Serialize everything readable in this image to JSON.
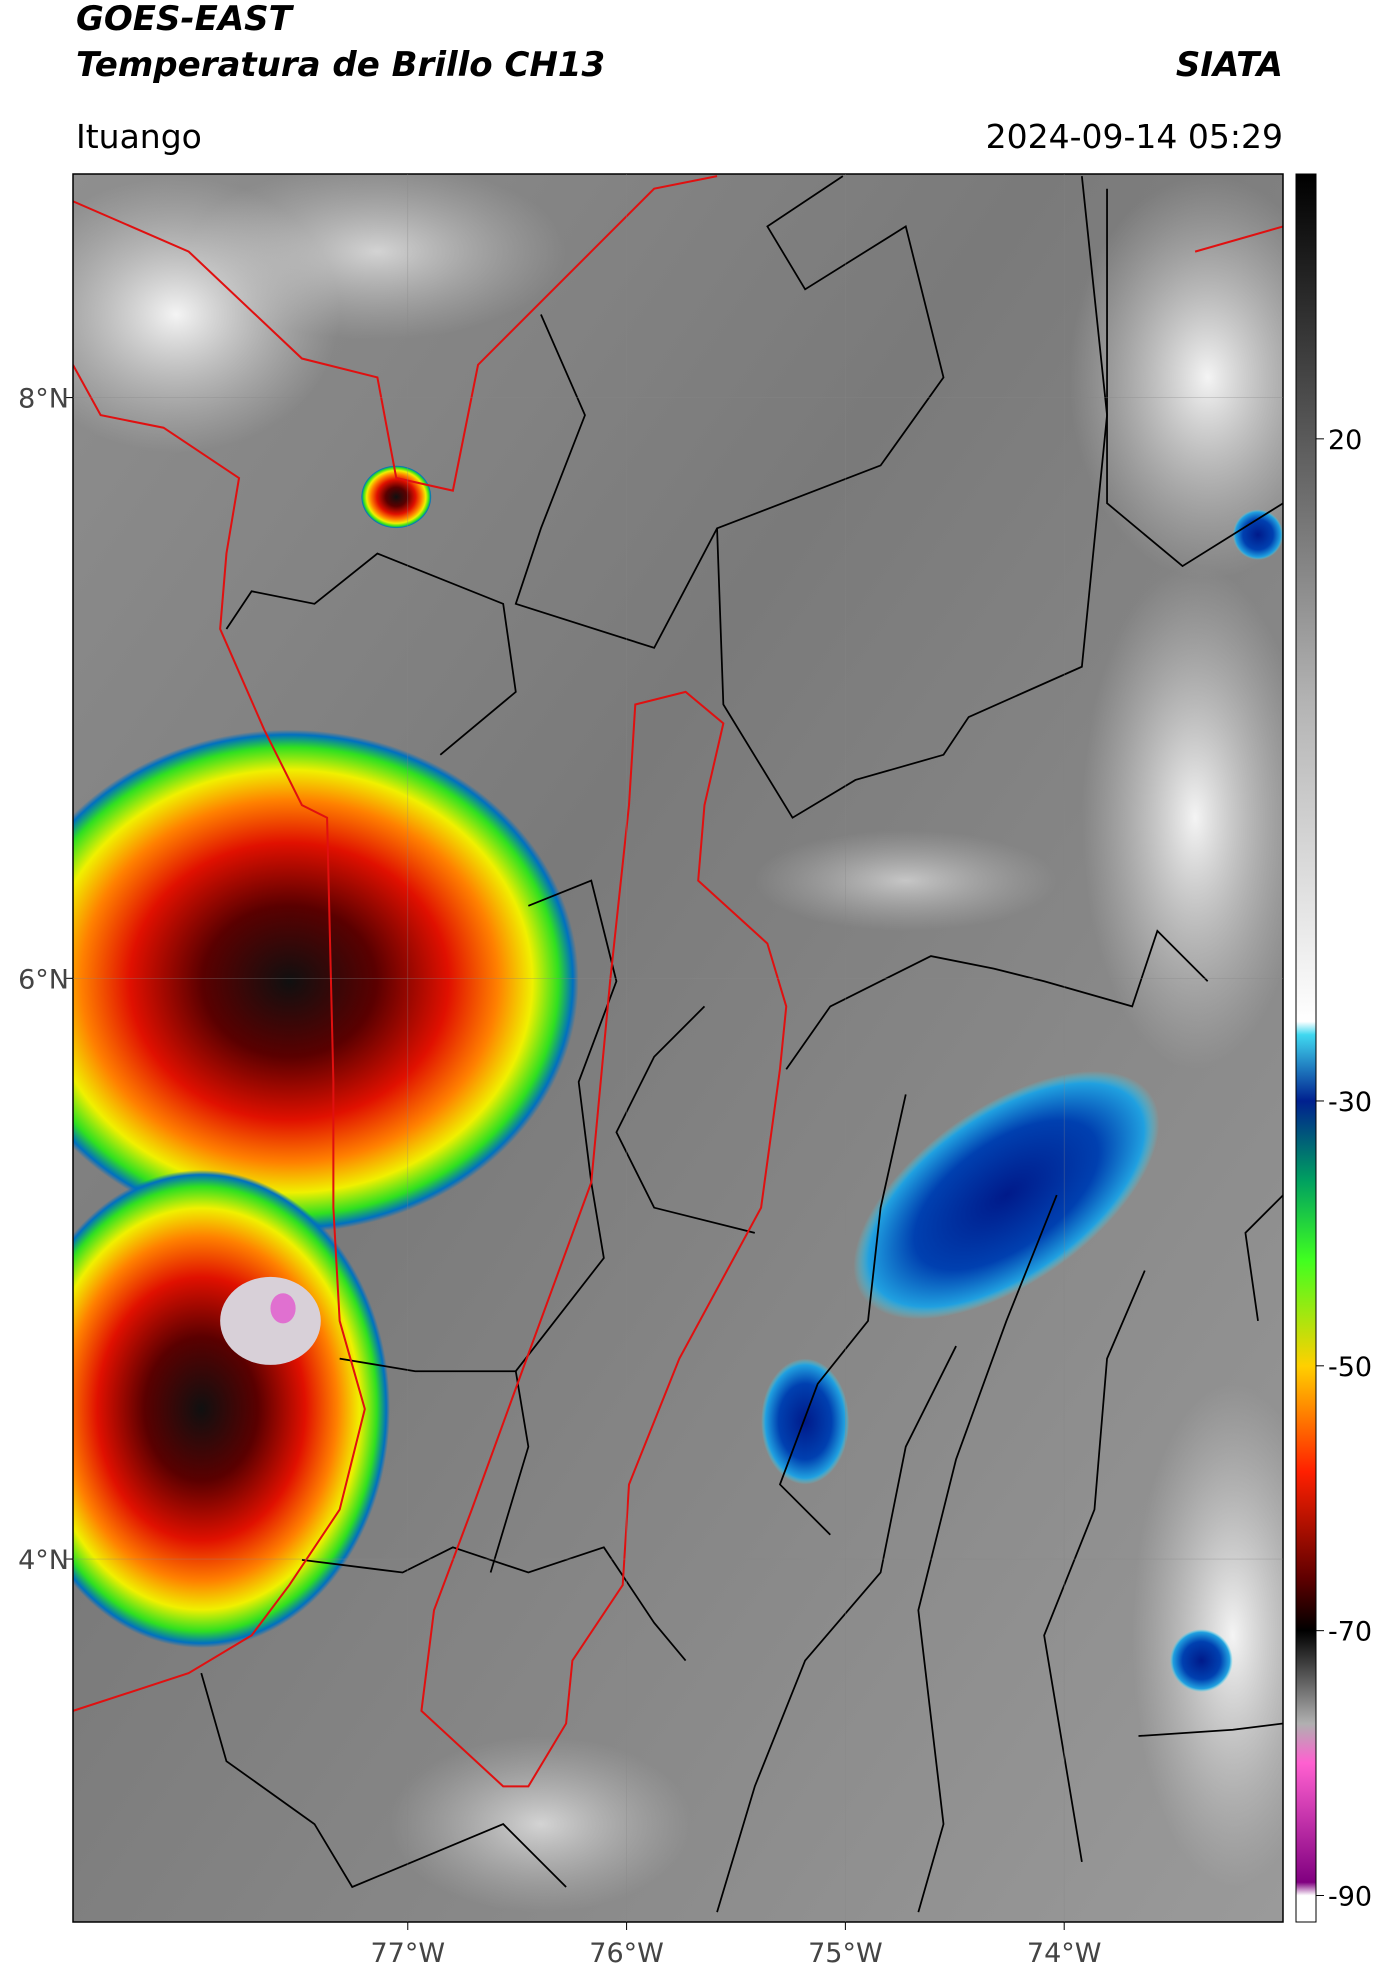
{
  "header": {
    "satellite": "GOES-EAST",
    "product": "Temperatura de Brillo CH13",
    "agency": "SIATA",
    "region": "Ituango",
    "datetime": "2024-09-14 05:29"
  },
  "map": {
    "xlim": [
      -78.53,
      -73.0
    ],
    "ylim": [
      2.75,
      8.77
    ],
    "xticks": [
      {
        "value": -77,
        "label": "77°W"
      },
      {
        "value": -76,
        "label": "76°W"
      },
      {
        "value": -75,
        "label": "75°W"
      },
      {
        "value": -74,
        "label": "74°W"
      }
    ],
    "yticks": [
      {
        "value": 8,
        "label": "8°N"
      },
      {
        "value": 6,
        "label": "6°N"
      },
      {
        "value": 4,
        "label": "4°N"
      }
    ],
    "grid": true
  },
  "colorbar": {
    "lim": [
      -92,
      40
    ],
    "ticks": [
      20,
      -30,
      -50,
      -70,
      -90
    ],
    "stops": [
      {
        "value": 40,
        "color": "#000000"
      },
      {
        "value": 20,
        "color": "#5a5a5a"
      },
      {
        "value": 0,
        "color": "#b4b4b4"
      },
      {
        "value": -24,
        "color": "#ffffff"
      },
      {
        "value": -25,
        "color": "#40d8f0"
      },
      {
        "value": -30,
        "color": "#00208f"
      },
      {
        "value": -36,
        "color": "#00a060"
      },
      {
        "value": -42,
        "color": "#40ff20"
      },
      {
        "value": -50,
        "color": "#ffd000"
      },
      {
        "value": -58,
        "color": "#ff2000"
      },
      {
        "value": -66,
        "color": "#600000"
      },
      {
        "value": -70,
        "color": "#000000"
      },
      {
        "value": -77,
        "color": "#b0b0b0"
      },
      {
        "value": -80,
        "color": "#ff60d0"
      },
      {
        "value": -89,
        "color": "#800080"
      },
      {
        "value": -90,
        "color": "#ffffff"
      }
    ]
  }
}
